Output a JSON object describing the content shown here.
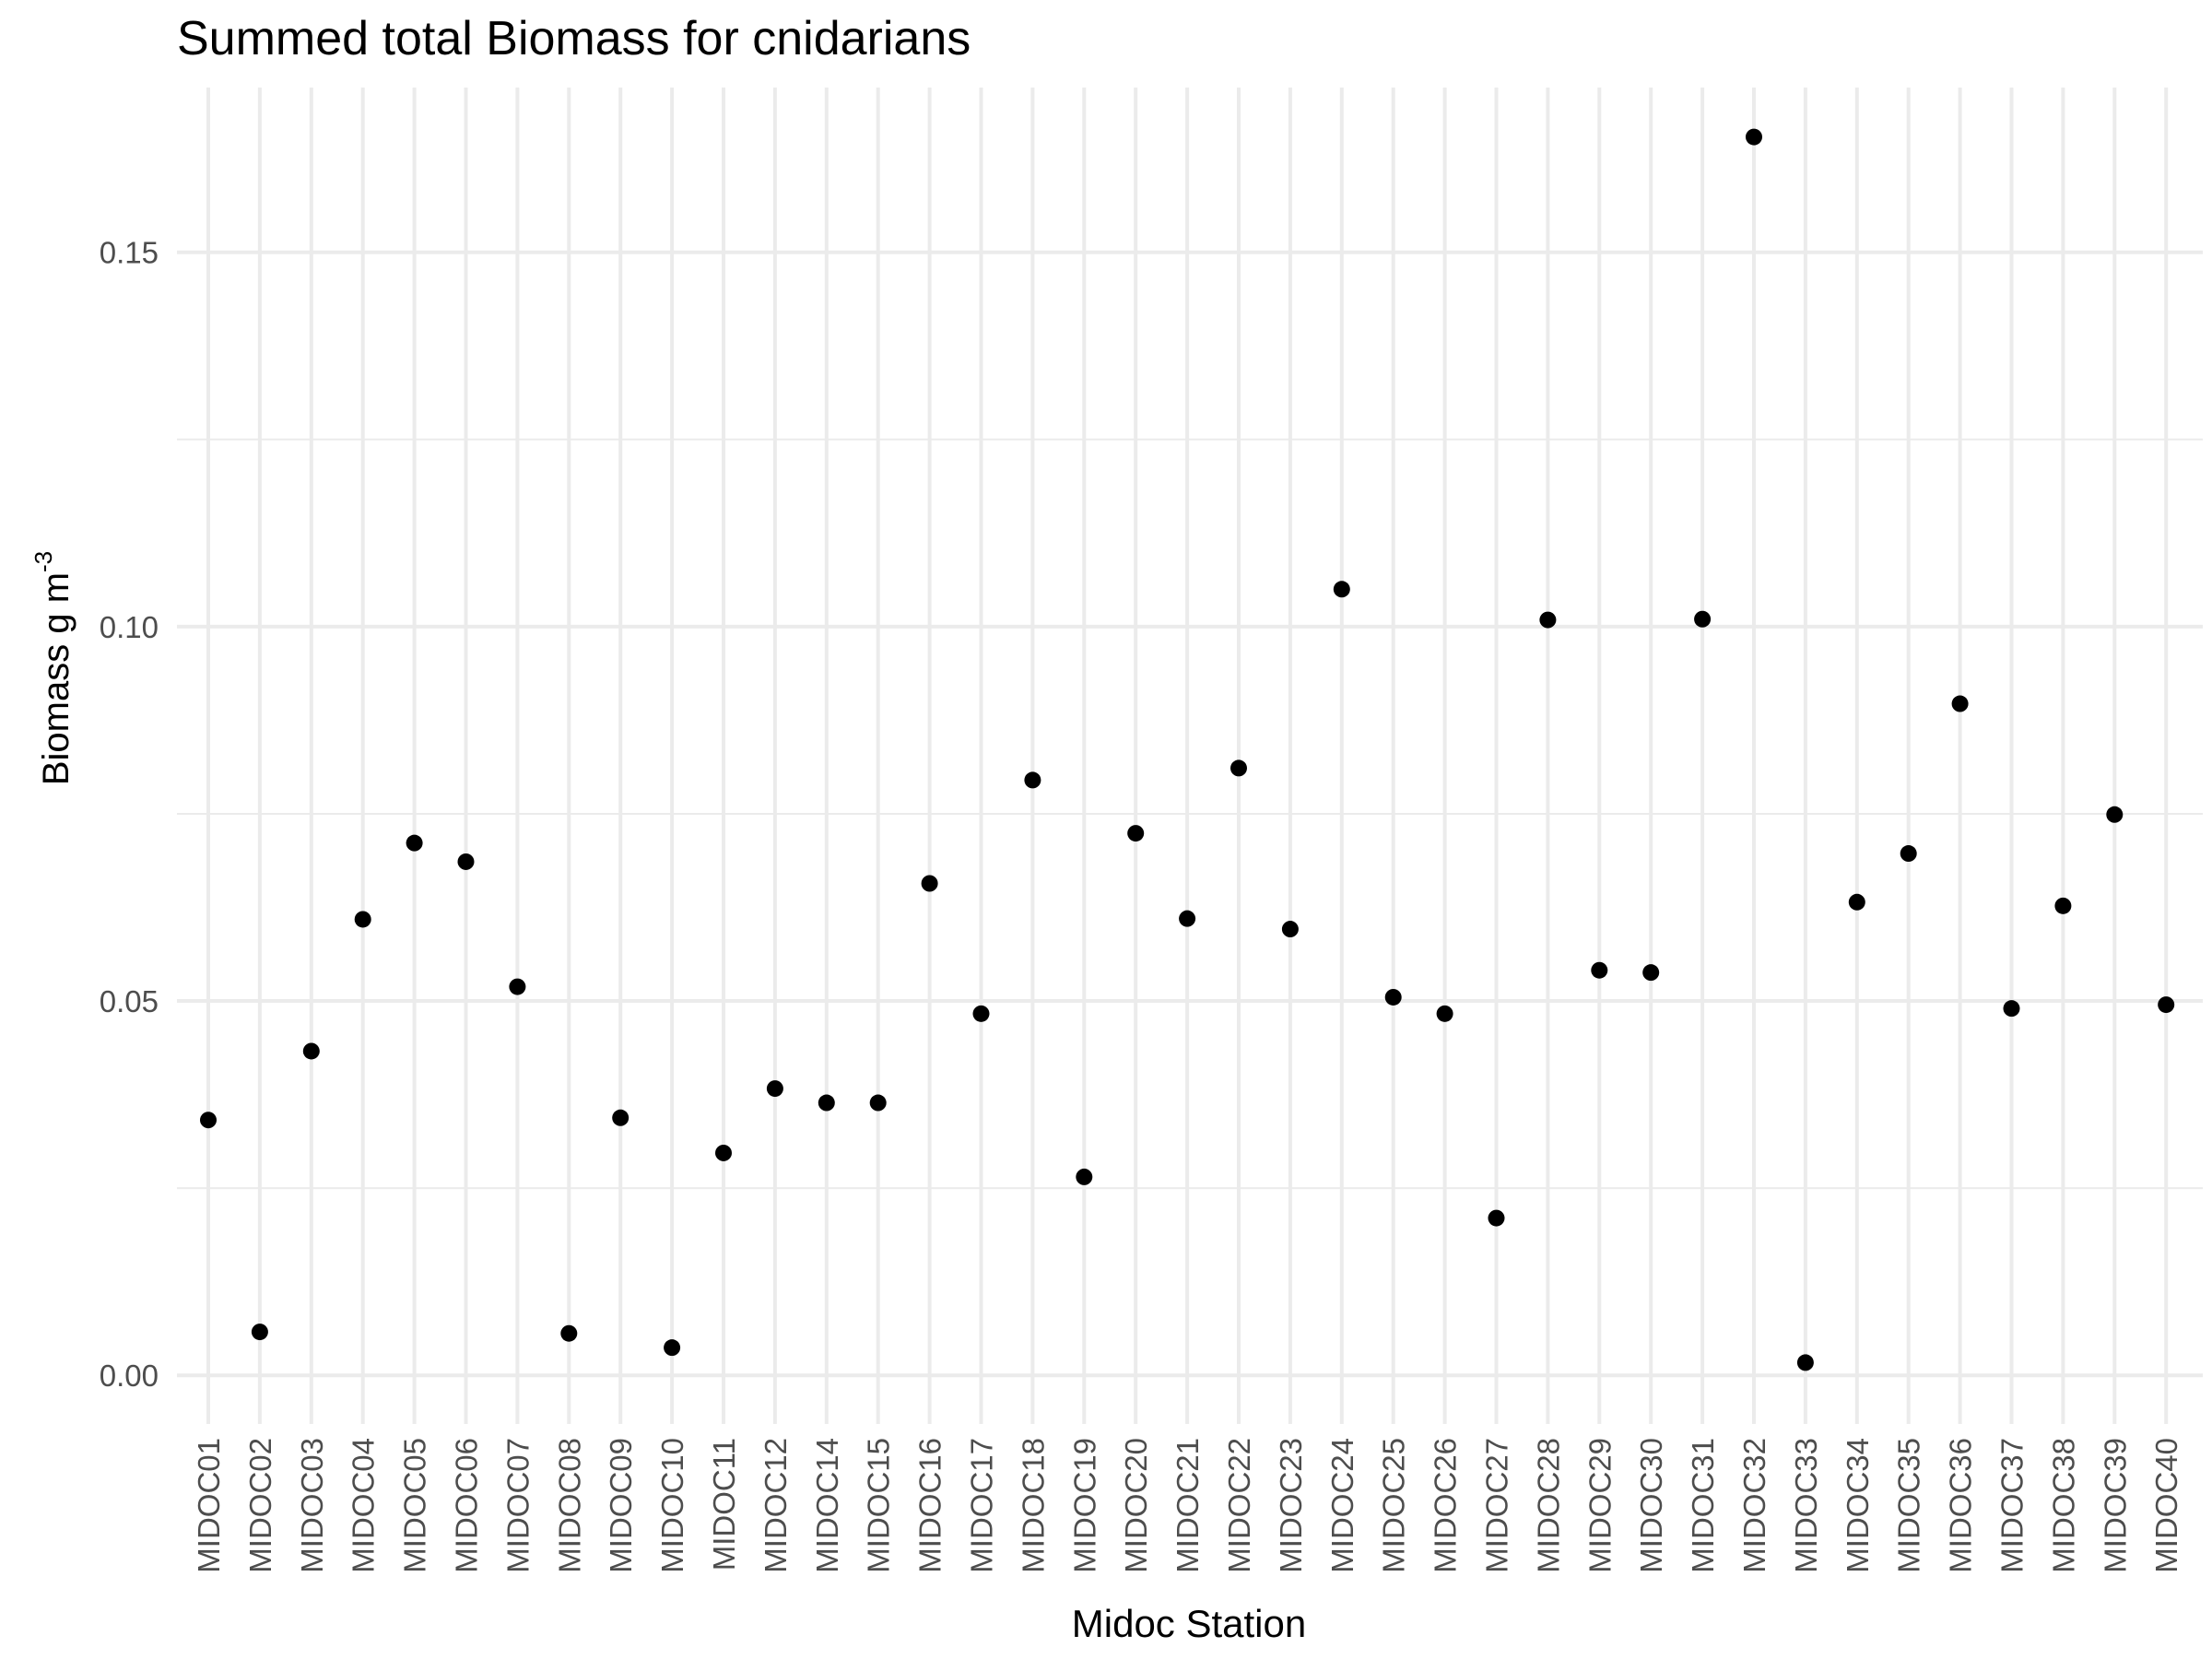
{
  "chart_data": {
    "type": "scatter",
    "title": "Summed total Biomass for cnidarians",
    "xlabel": "Midoc Station",
    "ylabel": "Biomass g m",
    "ylabel_superscript": "-3",
    "ylim": [
      -0.0065,
      0.172
    ],
    "yticks": [
      0.0,
      0.05,
      0.1,
      0.15
    ],
    "ytick_labels": [
      "0.00",
      "0.05",
      "0.10",
      "0.15"
    ],
    "grid": true,
    "legend": "none",
    "point_color": "#000000",
    "grid_color": "#ebebeb",
    "categories": [
      "MIDOC01",
      "MIDOC02",
      "MIDOC03",
      "MIDOC04",
      "MIDOC05",
      "MIDOC06",
      "MIDOC07",
      "MIDOC08",
      "MIDOC09",
      "MIDOC10",
      "MIDOC11",
      "MIDOC12",
      "MIDOC14",
      "MIDOC15",
      "MIDOC16",
      "MIDOC17",
      "MIDOC18",
      "MIDOC19",
      "MIDOC20",
      "MIDOC21",
      "MIDOC22",
      "MIDOC23",
      "MIDOC24",
      "MIDOC25",
      "MIDOC26",
      "MIDOC27",
      "MIDOC28",
      "MIDOC29",
      "MIDOC30",
      "MIDOC31",
      "MIDOC32",
      "MIDOC33",
      "MIDOC34",
      "MIDOC35",
      "MIDOC36",
      "MIDOC37",
      "MIDOC38",
      "MIDOC39",
      "MIDOC40"
    ],
    "values": [
      0.0341,
      0.0058,
      0.0433,
      0.0609,
      0.0711,
      0.0686,
      0.0519,
      0.0056,
      0.0344,
      0.0037,
      0.0297,
      0.0383,
      0.0364,
      0.0364,
      0.0657,
      0.0483,
      0.0795,
      0.0265,
      0.0724,
      0.061,
      0.0811,
      0.0596,
      0.105,
      0.0505,
      0.0483,
      0.021,
      0.1009,
      0.0541,
      0.0538,
      0.101,
      0.1654,
      0.0017,
      0.0632,
      0.0697,
      0.0897,
      0.049,
      0.0627,
      0.0749,
      0.0495
    ]
  }
}
